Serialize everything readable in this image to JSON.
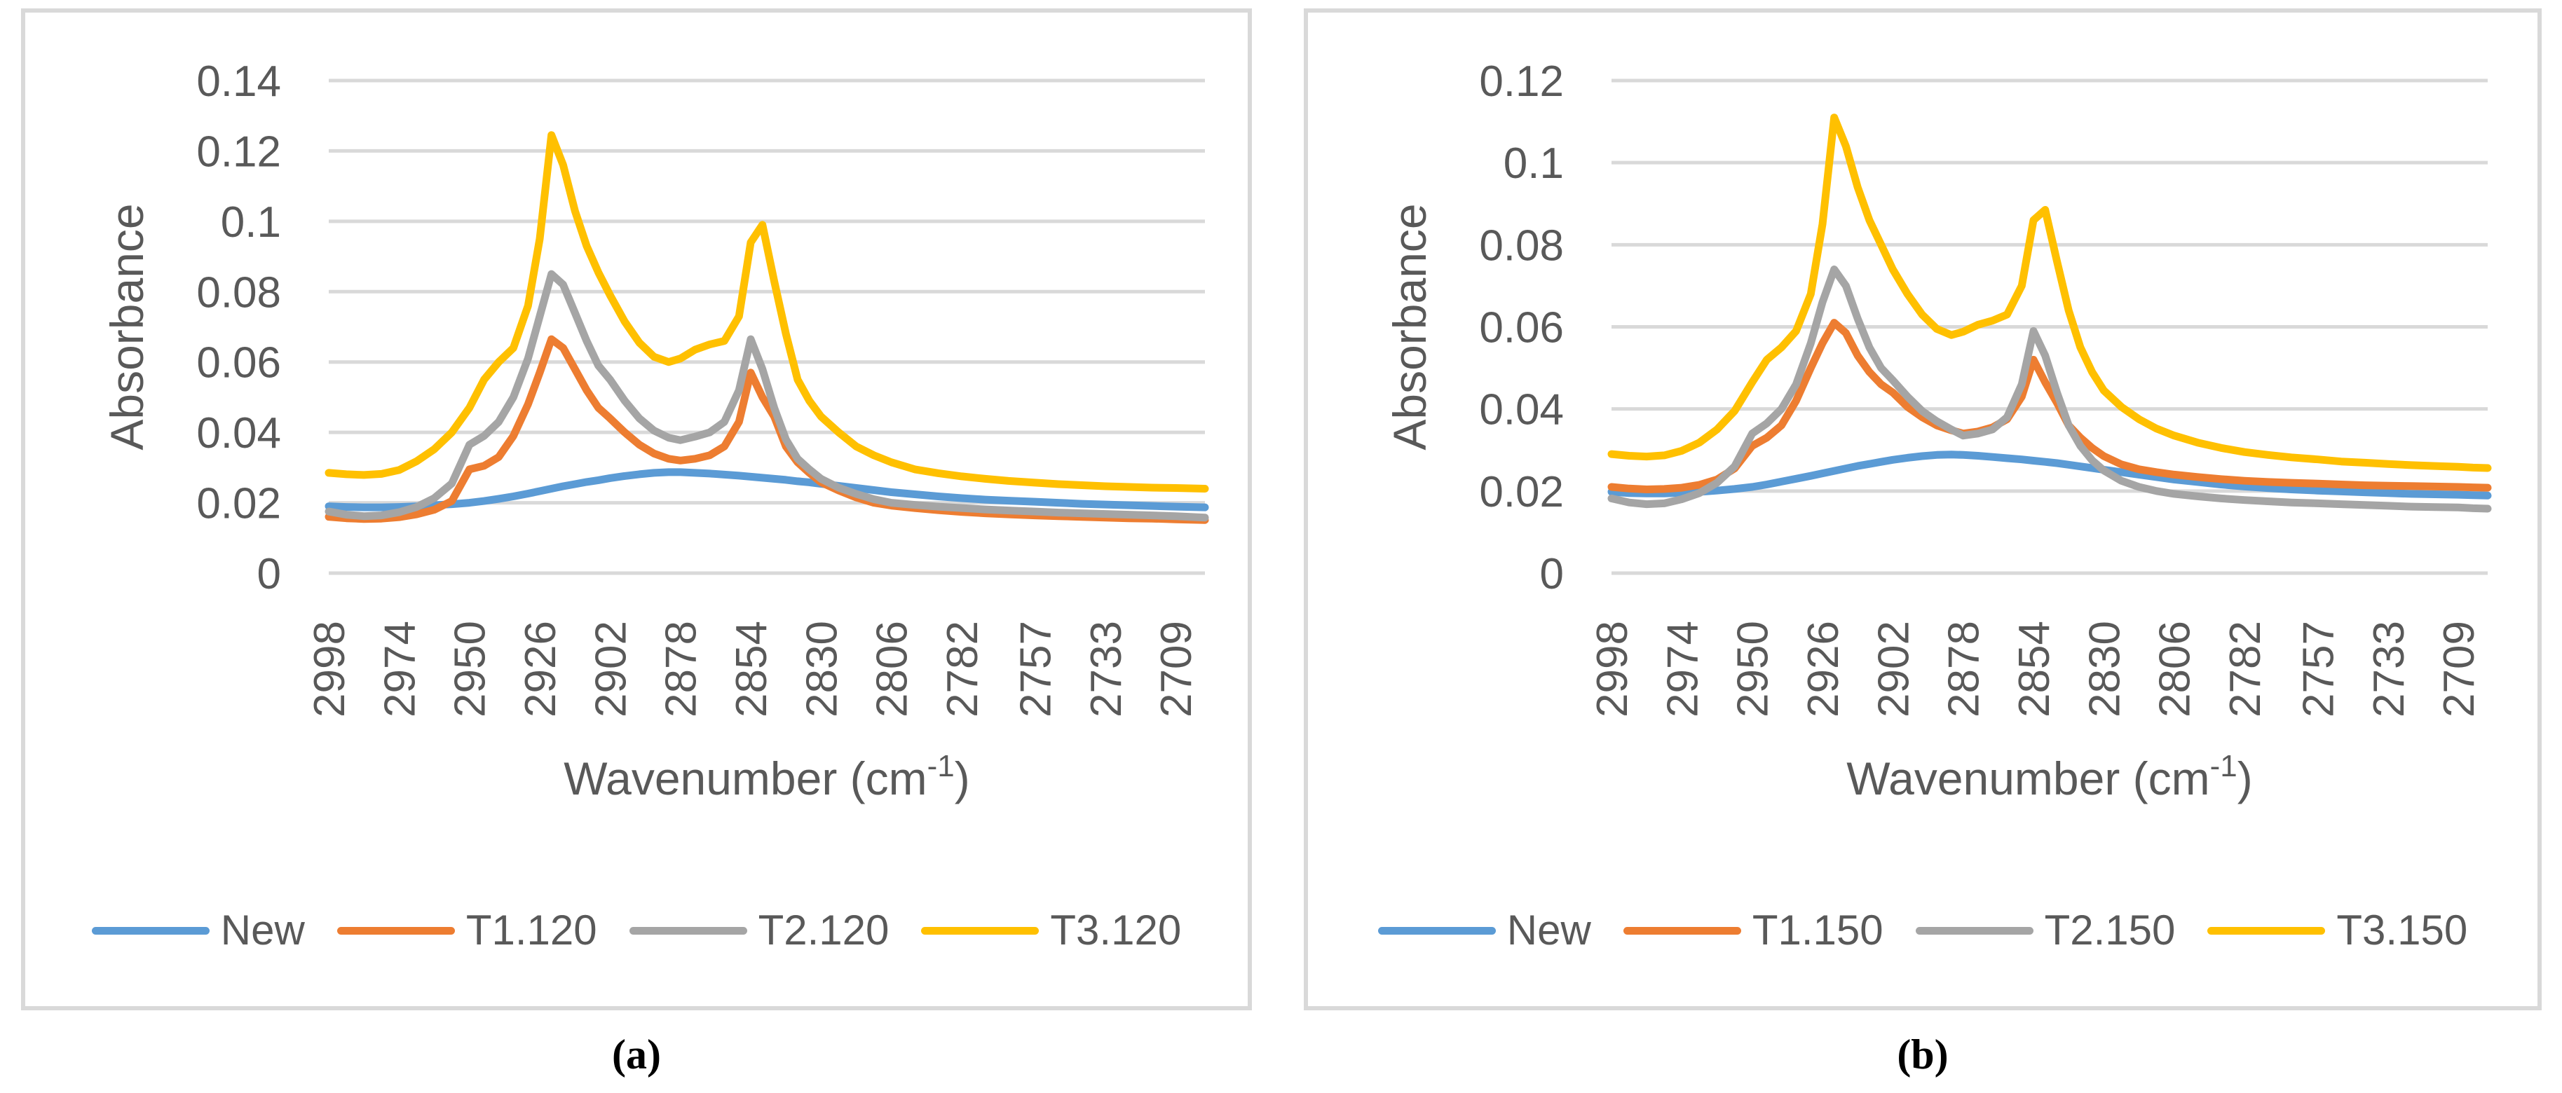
{
  "figure": {
    "caption_a": "(a)",
    "caption_b": "(b)"
  },
  "palette": {
    "blue": "#5B9BD5",
    "orange": "#ED7D31",
    "gray": "#A5A5A5",
    "yellow": "#FFC000",
    "grid": "#D9D9D9",
    "panel_border": "#D9D9D9",
    "text": "#595959"
  },
  "chart_data": [
    {
      "id": "a",
      "type": "line",
      "title": "",
      "ylabel": "Absorbance",
      "xlabel_pre": "Wavenumber (cm",
      "xlabel_sup": "-1",
      "xlabel_post": ")",
      "ylim": [
        0,
        0.14
      ],
      "x_domain": [
        2998,
        2699
      ],
      "grid": true,
      "legend_position": "bottom",
      "y_tick_values": [
        0,
        0.02,
        0.04,
        0.06,
        0.08,
        0.1,
        0.12,
        0.14
      ],
      "y_tick_labels": [
        "0",
        "0.02",
        "0.04",
        "0.06",
        "0.08",
        "0.1",
        "0.12",
        "0.14"
      ],
      "x_ticks": [
        2998,
        2974,
        2950,
        2926,
        2902,
        2878,
        2854,
        2830,
        2806,
        2782,
        2757,
        2733,
        2709
      ],
      "x": [
        2998,
        2992,
        2986,
        2980,
        2974,
        2968,
        2962,
        2956,
        2950,
        2945,
        2940,
        2935,
        2930,
        2926,
        2922,
        2918,
        2914,
        2910,
        2906,
        2902,
        2897,
        2892,
        2887,
        2882,
        2878,
        2873,
        2868,
        2863,
        2858,
        2854,
        2850,
        2846,
        2842,
        2838,
        2834,
        2830,
        2824,
        2818,
        2812,
        2806,
        2798,
        2790,
        2782,
        2774,
        2766,
        2757,
        2749,
        2741,
        2733,
        2725,
        2717,
        2709,
        2704,
        2699
      ],
      "series": [
        {
          "name": "New",
          "color": "#5B9BD5",
          "values": [
            0.019,
            0.0188,
            0.0187,
            0.0187,
            0.0188,
            0.019,
            0.0193,
            0.0196,
            0.02,
            0.0205,
            0.0211,
            0.0218,
            0.0226,
            0.0233,
            0.024,
            0.0247,
            0.0253,
            0.0259,
            0.0264,
            0.027,
            0.0276,
            0.0281,
            0.0285,
            0.0287,
            0.0287,
            0.0285,
            0.0283,
            0.028,
            0.0277,
            0.0274,
            0.0271,
            0.0268,
            0.0265,
            0.0261,
            0.0258,
            0.0254,
            0.0248,
            0.0242,
            0.0236,
            0.023,
            0.0224,
            0.0218,
            0.0213,
            0.0209,
            0.0206,
            0.0203,
            0.02,
            0.0197,
            0.0195,
            0.0193,
            0.0191,
            0.0189,
            0.0188,
            0.0187
          ]
        },
        {
          "name": "T1.120",
          "color": "#ED7D31",
          "values": [
            0.016,
            0.0156,
            0.0154,
            0.0155,
            0.0159,
            0.0167,
            0.018,
            0.0205,
            0.0295,
            0.0305,
            0.033,
            0.039,
            0.048,
            0.057,
            0.0665,
            0.064,
            0.058,
            0.052,
            0.047,
            0.044,
            0.04,
            0.0365,
            0.034,
            0.0325,
            0.032,
            0.0325,
            0.0335,
            0.036,
            0.043,
            0.057,
            0.05,
            0.0445,
            0.036,
            0.0315,
            0.0285,
            0.0258,
            0.0235,
            0.0215,
            0.02,
            0.0192,
            0.0185,
            0.0179,
            0.0174,
            0.017,
            0.0167,
            0.0164,
            0.0162,
            0.016,
            0.0158,
            0.0156,
            0.0155,
            0.0153,
            0.0152,
            0.0151
          ]
        },
        {
          "name": "T2.120",
          "color": "#A5A5A5",
          "values": [
            0.0175,
            0.0166,
            0.0162,
            0.0164,
            0.0173,
            0.0188,
            0.0213,
            0.0255,
            0.0365,
            0.039,
            0.043,
            0.05,
            0.061,
            0.073,
            0.085,
            0.082,
            0.074,
            0.066,
            0.059,
            0.055,
            0.049,
            0.044,
            0.0405,
            0.0385,
            0.0378,
            0.0388,
            0.04,
            0.043,
            0.052,
            0.0665,
            0.058,
            0.047,
            0.038,
            0.0325,
            0.0295,
            0.0268,
            0.0243,
            0.0225,
            0.021,
            0.02,
            0.0194,
            0.0189,
            0.0185,
            0.0181,
            0.0178,
            0.0175,
            0.0172,
            0.017,
            0.0168,
            0.0166,
            0.0164,
            0.0162,
            0.016,
            0.0158
          ]
        },
        {
          "name": "T3.120",
          "color": "#FFC000",
          "values": [
            0.0285,
            0.0281,
            0.0279,
            0.0282,
            0.0293,
            0.0318,
            0.0352,
            0.04,
            0.047,
            0.055,
            0.06,
            0.064,
            0.076,
            0.095,
            0.1245,
            0.116,
            0.103,
            0.093,
            0.0855,
            0.079,
            0.0715,
            0.0655,
            0.0615,
            0.06,
            0.061,
            0.0635,
            0.065,
            0.066,
            0.073,
            0.094,
            0.099,
            0.083,
            0.068,
            0.055,
            0.049,
            0.0445,
            0.04,
            0.036,
            0.0335,
            0.0315,
            0.0295,
            0.0284,
            0.0275,
            0.0268,
            0.0262,
            0.0257,
            0.0253,
            0.025,
            0.0247,
            0.0245,
            0.0243,
            0.0242,
            0.0241,
            0.024
          ]
        }
      ]
    },
    {
      "id": "b",
      "type": "line",
      "title": "",
      "ylabel": "Absorbance",
      "xlabel_pre": "Wavenumber (cm",
      "xlabel_sup": "-1",
      "xlabel_post": ")",
      "ylim": [
        0,
        0.12
      ],
      "x_domain": [
        2998,
        2699
      ],
      "grid": true,
      "legend_position": "bottom",
      "y_tick_values": [
        0,
        0.02,
        0.04,
        0.06,
        0.08,
        0.1,
        0.12
      ],
      "y_tick_labels": [
        "0",
        "0.02",
        "0.04",
        "0.06",
        "0.08",
        "0.1",
        "0.12"
      ],
      "x_ticks": [
        2998,
        2974,
        2950,
        2926,
        2902,
        2878,
        2854,
        2830,
        2806,
        2782,
        2757,
        2733,
        2709
      ],
      "x": [
        2998,
        2992,
        2986,
        2980,
        2974,
        2968,
        2962,
        2956,
        2950,
        2945,
        2940,
        2935,
        2930,
        2926,
        2922,
        2918,
        2914,
        2910,
        2906,
        2902,
        2897,
        2892,
        2887,
        2882,
        2878,
        2873,
        2868,
        2863,
        2858,
        2854,
        2850,
        2846,
        2842,
        2838,
        2834,
        2830,
        2824,
        2818,
        2812,
        2806,
        2798,
        2790,
        2782,
        2774,
        2766,
        2757,
        2749,
        2741,
        2733,
        2725,
        2717,
        2709,
        2704,
        2699
      ],
      "series": [
        {
          "name": "New",
          "color": "#5B9BD5",
          "values": [
            0.0198,
            0.0195,
            0.0194,
            0.0194,
            0.0196,
            0.0198,
            0.0201,
            0.0205,
            0.021,
            0.0216,
            0.0223,
            0.023,
            0.0237,
            0.0243,
            0.0249,
            0.0255,
            0.0261,
            0.0266,
            0.0271,
            0.0276,
            0.0281,
            0.0285,
            0.0288,
            0.0289,
            0.0288,
            0.0286,
            0.0283,
            0.028,
            0.0277,
            0.0274,
            0.0271,
            0.0268,
            0.0264,
            0.026,
            0.0256,
            0.0252,
            0.0246,
            0.024,
            0.0234,
            0.0228,
            0.0222,
            0.0216,
            0.0211,
            0.0207,
            0.0204,
            0.0201,
            0.0199,
            0.0197,
            0.0195,
            0.0193,
            0.0192,
            0.0191,
            0.019,
            0.0189
          ]
        },
        {
          "name": "T1.150",
          "color": "#ED7D31",
          "values": [
            0.021,
            0.0206,
            0.0204,
            0.0205,
            0.0208,
            0.0215,
            0.0228,
            0.0255,
            0.031,
            0.033,
            0.036,
            0.042,
            0.05,
            0.056,
            0.061,
            0.0585,
            0.053,
            0.049,
            0.046,
            0.044,
            0.0405,
            0.038,
            0.036,
            0.0348,
            0.034,
            0.0345,
            0.0355,
            0.0375,
            0.043,
            0.052,
            0.0465,
            0.0415,
            0.036,
            0.033,
            0.0305,
            0.0285,
            0.0265,
            0.0253,
            0.0246,
            0.024,
            0.0234,
            0.0229,
            0.0225,
            0.0222,
            0.022,
            0.0218,
            0.0216,
            0.0214,
            0.0213,
            0.0212,
            0.0211,
            0.021,
            0.0209,
            0.0208
          ]
        },
        {
          "name": "T2.150",
          "color": "#A5A5A5",
          "values": [
            0.0182,
            0.0172,
            0.0168,
            0.017,
            0.018,
            0.0195,
            0.022,
            0.026,
            0.034,
            0.0365,
            0.04,
            0.046,
            0.056,
            0.066,
            0.074,
            0.07,
            0.062,
            0.055,
            0.05,
            0.047,
            0.043,
            0.0395,
            0.037,
            0.035,
            0.0335,
            0.034,
            0.035,
            0.038,
            0.046,
            0.059,
            0.053,
            0.044,
            0.036,
            0.031,
            0.0275,
            0.025,
            0.0225,
            0.021,
            0.02,
            0.0193,
            0.0187,
            0.0182,
            0.0178,
            0.0175,
            0.0172,
            0.017,
            0.0168,
            0.0166,
            0.0164,
            0.0162,
            0.0161,
            0.016,
            0.0158,
            0.0157
          ]
        },
        {
          "name": "T3.150",
          "color": "#FFC000",
          "values": [
            0.029,
            0.0286,
            0.0284,
            0.0287,
            0.0298,
            0.0318,
            0.035,
            0.0395,
            0.0465,
            0.052,
            0.055,
            0.059,
            0.068,
            0.085,
            0.111,
            0.104,
            0.094,
            0.086,
            0.08,
            0.074,
            0.068,
            0.063,
            0.0595,
            0.058,
            0.0588,
            0.0605,
            0.0615,
            0.063,
            0.07,
            0.086,
            0.0885,
            0.076,
            0.064,
            0.055,
            0.049,
            0.0445,
            0.0405,
            0.0375,
            0.0352,
            0.0335,
            0.0318,
            0.0305,
            0.0295,
            0.0288,
            0.0282,
            0.0277,
            0.0272,
            0.0269,
            0.0266,
            0.0263,
            0.0261,
            0.0259,
            0.0257,
            0.0256
          ]
        }
      ]
    }
  ]
}
